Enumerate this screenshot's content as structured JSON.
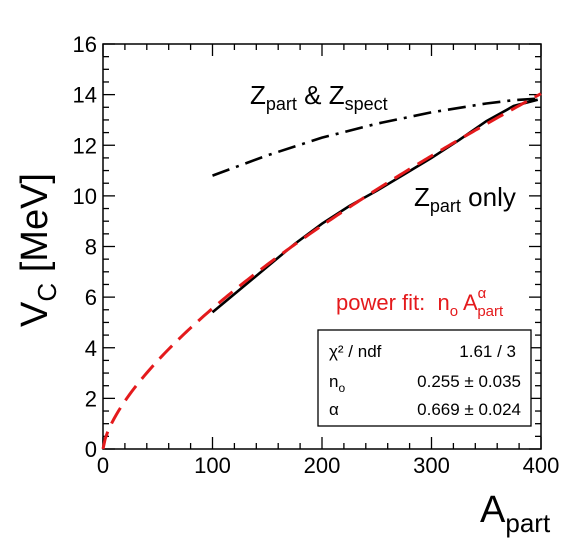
{
  "chart_data": {
    "type": "line",
    "xlabel": {
      "base": "A",
      "sub": "part"
    },
    "ylabel": {
      "base": "V",
      "sub": "C",
      "unit": " [MeV]"
    },
    "xlim": [
      0,
      400
    ],
    "ylim": [
      0,
      16
    ],
    "x_ticks": [
      0,
      100,
      200,
      300,
      400
    ],
    "y_ticks": [
      0,
      2,
      4,
      6,
      8,
      10,
      12,
      14,
      16
    ],
    "grid": false,
    "annotations": {
      "z_part_spect": {
        "a": "Z",
        "a_sub": "part",
        "mid": " & ",
        "b": "Z",
        "b_sub": "spect"
      },
      "z_part_only": {
        "a": "Z",
        "a_sub": "part",
        "rest": " only"
      },
      "fit_label": {
        "prefix": "power fit:  n",
        "n_sub": "o",
        "space": " A",
        "A_sup": "α",
        "A_sub": "part"
      }
    },
    "series": [
      {
        "style": "solid",
        "color": "#000000",
        "x": [
          100,
          125,
          150,
          175,
          200,
          225,
          250,
          275,
          300,
          325,
          350,
          375,
          397
        ],
        "y": [
          5.4,
          6.3,
          7.2,
          8.1,
          8.9,
          9.6,
          10.2,
          10.85,
          11.5,
          12.2,
          12.95,
          13.55,
          13.8
        ]
      },
      {
        "style": "dashdot",
        "color": "#000000",
        "x": [
          100,
          150,
          200,
          250,
          300,
          350,
          375,
          400
        ],
        "y": [
          10.8,
          11.6,
          12.3,
          12.85,
          13.3,
          13.65,
          13.78,
          13.85
        ]
      },
      {
        "style": "dashed",
        "color": "#e41a1c",
        "model": "power",
        "n0": 0.255,
        "alpha": 0.669,
        "x_range": [
          0,
          400
        ]
      }
    ],
    "stats_box": {
      "rows": [
        {
          "label": "χ² / ndf",
          "value": "1.61 / 3"
        },
        {
          "label_base": "n",
          "label_sub": "o",
          "value": "0.255 ± 0.035"
        },
        {
          "label": "α",
          "value": "0.669 ± 0.024"
        }
      ]
    }
  }
}
